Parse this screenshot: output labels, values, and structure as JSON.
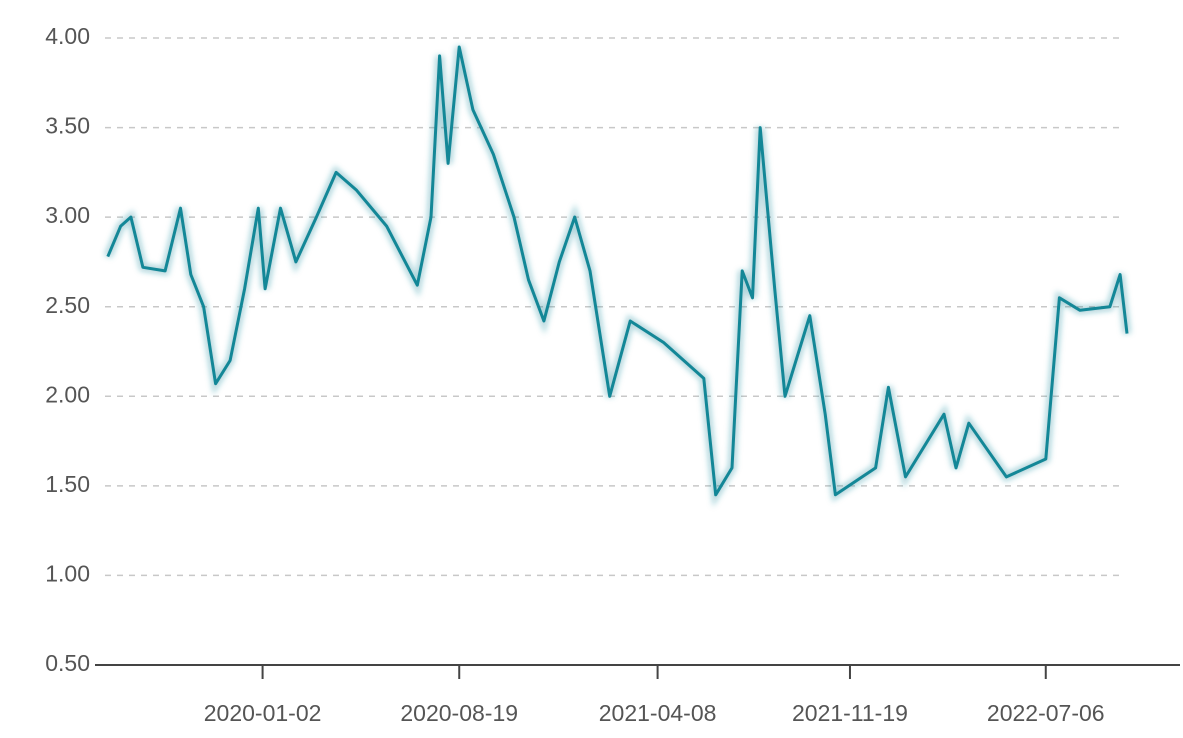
{
  "chart_data": {
    "type": "line",
    "x": [
      "2019-07-05",
      "2019-07-20",
      "2019-08-01",
      "2019-08-15",
      "2019-09-10",
      "2019-09-28",
      "2019-10-10",
      "2019-10-25",
      "2019-11-08",
      "2019-11-25",
      "2019-12-12",
      "2019-12-28",
      "2020-01-05",
      "2020-01-23",
      "2020-02-10",
      "2020-03-05",
      "2020-03-28",
      "2020-04-21",
      "2020-05-26",
      "2020-07-01",
      "2020-07-17",
      "2020-07-27",
      "2020-08-06",
      "2020-08-19",
      "2020-09-04",
      "2020-09-28",
      "2020-10-22",
      "2020-11-08",
      "2020-11-26",
      "2020-12-14",
      "2021-01-01",
      "2021-01-19",
      "2021-02-11",
      "2021-03-07",
      "2021-04-15",
      "2021-06-01",
      "2021-06-15",
      "2021-07-04",
      "2021-07-16",
      "2021-07-28",
      "2021-08-06",
      "2021-08-23",
      "2021-09-04",
      "2021-10-03",
      "2021-10-21",
      "2021-11-02",
      "2021-12-19",
      "2022-01-03",
      "2022-01-23",
      "2022-03-09",
      "2022-03-23",
      "2022-04-07",
      "2022-05-21",
      "2022-07-06",
      "2022-07-22",
      "2022-08-15",
      "2022-09-19",
      "2022-10-01",
      "2022-10-09"
    ],
    "series": [
      {
        "color": "#138797",
        "values": [
          2.78,
          2.95,
          3.0,
          2.72,
          2.7,
          3.05,
          2.68,
          2.5,
          2.07,
          2.2,
          2.6,
          3.05,
          2.6,
          3.05,
          2.75,
          3.0,
          3.25,
          3.15,
          2.95,
          2.62,
          3.0,
          3.9,
          3.3,
          3.95,
          3.6,
          3.35,
          3.0,
          2.65,
          2.42,
          2.75,
          3.0,
          2.7,
          2.0,
          2.42,
          2.3,
          2.1,
          1.45,
          1.6,
          2.7,
          2.55,
          3.5,
          2.6,
          2.0,
          2.45,
          1.9,
          1.45,
          1.6,
          2.05,
          1.55,
          1.9,
          1.6,
          1.85,
          1.55,
          1.65,
          2.55,
          2.48,
          2.5,
          2.68,
          2.35
        ]
      }
    ],
    "xlim": [
      "2019-06-20",
      "2022-12-10"
    ],
    "xticks": [
      "2020-01-02",
      "2020-08-19",
      "2021-04-08",
      "2021-11-19",
      "2022-07-06"
    ],
    "ylim": [
      0.5,
      4.0
    ],
    "yticks": [
      {
        "value": 0.5,
        "label": "0.50"
      },
      {
        "value": 1,
        "label": "1.00"
      },
      {
        "value": 1.5,
        "label": "1.50"
      },
      {
        "value": 2,
        "label": "2.00"
      },
      {
        "value": 2.5,
        "label": "2.50"
      },
      {
        "value": 3,
        "label": "3.00"
      },
      {
        "value": 3.5,
        "label": "3.50"
      },
      {
        "value": 4,
        "label": "4.00"
      }
    ],
    "grid": true
  }
}
